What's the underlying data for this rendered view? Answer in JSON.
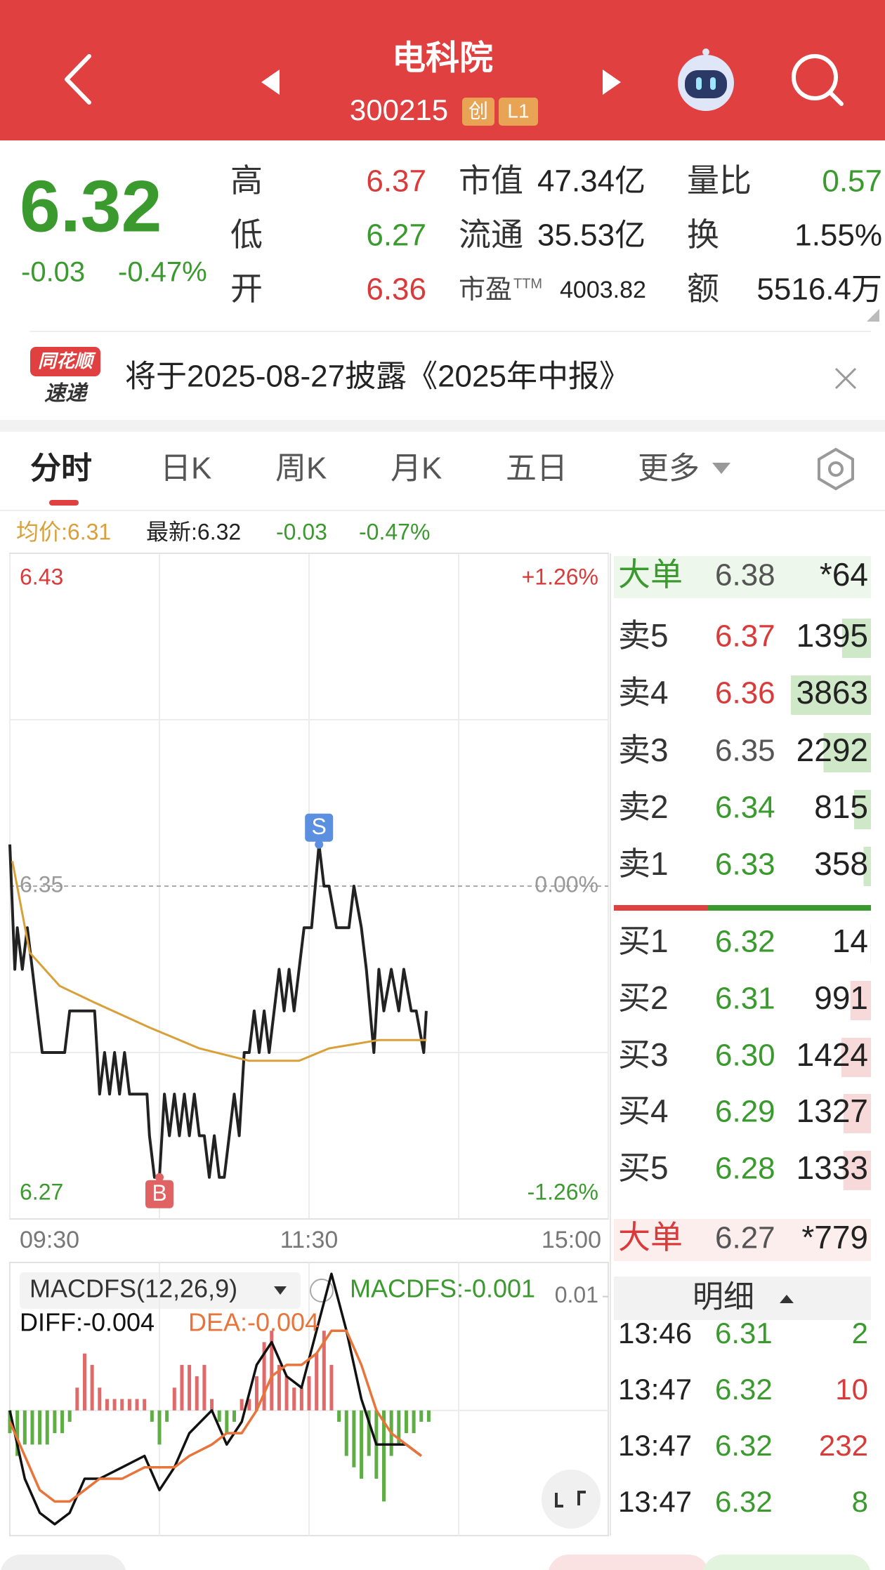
{
  "header": {
    "title": "电科院",
    "code": "300215",
    "badges": [
      "创",
      "L1"
    ]
  },
  "quote": {
    "price": "6.32",
    "change": "-0.03",
    "change_pct": "-0.47%",
    "color": "#3a9a2e",
    "stats": [
      [
        {
          "label": "高",
          "value": "6.37",
          "color": "#d93a3a"
        },
        {
          "label": "低",
          "value": "6.27",
          "color": "#3a9a2e"
        },
        {
          "label": "开",
          "value": "6.36",
          "color": "#d93a3a"
        }
      ],
      [
        {
          "label": "市值",
          "value": "47.34亿",
          "color": "#222222"
        },
        {
          "label": "流通",
          "value": "35.53亿",
          "color": "#222222"
        },
        {
          "label": "市盈",
          "sup": "TTM",
          "value": "4003.82",
          "color": "#222222"
        }
      ],
      [
        {
          "label": "量比",
          "value": "0.57",
          "color": "#3a9a2e"
        },
        {
          "label": "换",
          "value": "1.55%",
          "color": "#222222"
        },
        {
          "label": "额",
          "value": "5516.4万",
          "color": "#222222"
        }
      ]
    ]
  },
  "notice": {
    "brand": [
      "同花顺",
      "速递"
    ],
    "text": "将于2025-08-27披露《2025年中报》"
  },
  "tabs": [
    "分时",
    "日K",
    "周K",
    "月K",
    "五日",
    "更多"
  ],
  "info": {
    "avg": "均价:6.31",
    "latest": "最新:6.32",
    "change": "-0.03",
    "change_pct": "-0.47%"
  },
  "chart_data": [
    {
      "type": "line",
      "xlim": [
        0,
        240
      ],
      "xticks": [
        {
          "value": 0,
          "label": "09:30"
        },
        {
          "value": 120,
          "label": "11:30"
        },
        {
          "value": 240,
          "label": "15:00"
        }
      ],
      "ylim": [
        6.27,
        6.43
      ],
      "yticks": [
        6.43,
        6.35,
        6.27
      ],
      "ytick_colors": [
        "#d93a3a",
        "#999999",
        "#3a9a2e"
      ],
      "y2lim": [
        -1.26,
        1.26
      ],
      "y2ticks": [
        {
          "value": 1.26,
          "label": "+1.26%"
        },
        {
          "value": 0,
          "label": "0.00%"
        },
        {
          "value": -1.26,
          "label": "-1.26%"
        }
      ],
      "series": [
        {
          "color": "#222222",
          "x": [
            0,
            2,
            3,
            5,
            7,
            9,
            11,
            13,
            22,
            24,
            34,
            35,
            36,
            38,
            40,
            42,
            44,
            46,
            48,
            50,
            55,
            56,
            58,
            60,
            62,
            64,
            66,
            68,
            70,
            72,
            74,
            76,
            78,
            80,
            82,
            84,
            86,
            88,
            90,
            92,
            94,
            96,
            98,
            100,
            102,
            104,
            106,
            108,
            110,
            112,
            114,
            116,
            118,
            121,
            124,
            126,
            128,
            131,
            136,
            138,
            141,
            143,
            146,
            148,
            150,
            153,
            156,
            158,
            161,
            163,
            166,
            167
          ],
          "values": [
            6.36,
            6.33,
            6.34,
            6.33,
            6.34,
            6.33,
            6.32,
            6.31,
            6.31,
            6.32,
            6.32,
            6.31,
            6.3,
            6.31,
            6.3,
            6.31,
            6.3,
            6.31,
            6.3,
            6.3,
            6.3,
            6.29,
            6.28,
            6.28,
            6.3,
            6.29,
            6.3,
            6.29,
            6.3,
            6.29,
            6.3,
            6.29,
            6.29,
            6.28,
            6.29,
            6.28,
            6.28,
            6.29,
            6.3,
            6.29,
            6.31,
            6.31,
            6.32,
            6.31,
            6.32,
            6.31,
            6.32,
            6.33,
            6.32,
            6.33,
            6.32,
            6.33,
            6.34,
            6.34,
            6.36,
            6.35,
            6.35,
            6.34,
            6.34,
            6.35,
            6.34,
            6.33,
            6.31,
            6.33,
            6.32,
            6.33,
            6.32,
            6.33,
            6.32,
            6.32,
            6.31,
            6.32
          ]
        },
        {
          "color": "#d9a03a",
          "x": [
            1,
            8,
            20,
            34,
            56,
            76,
            96,
            116,
            128,
            148,
            167
          ],
          "values": [
            6.356,
            6.334,
            6.326,
            6.322,
            6.316,
            6.311,
            6.308,
            6.308,
            6.311,
            6.313,
            6.313
          ]
        }
      ],
      "markers": [
        {
          "label": "B",
          "x": 60,
          "y": 6.28,
          "color": "#e06262"
        },
        {
          "label": "S",
          "x": 124,
          "y": 6.36,
          "color": "#5b8fe0"
        }
      ]
    },
    {
      "type": "macd",
      "title": "MACDFS(12,26,9)",
      "value_label": "MACDFS:-0.001",
      "diff_label": "DIFF:-0.004",
      "dea_label": "DEA:-0.004",
      "xlim": [
        0,
        240
      ],
      "ylim": [
        -0.011,
        0.013
      ],
      "yticks": [
        0.01
      ],
      "bars": {
        "up_color": "#e06a6a",
        "down_color": "#5fae45",
        "x": [
          0,
          3,
          6,
          9,
          12,
          15,
          18,
          21,
          24,
          27,
          30,
          33,
          36,
          39,
          42,
          45,
          48,
          51,
          54,
          57,
          60,
          63,
          66,
          69,
          72,
          75,
          78,
          81,
          84,
          87,
          90,
          93,
          96,
          99,
          102,
          105,
          108,
          111,
          114,
          117,
          120,
          123,
          126,
          129,
          132,
          135,
          138,
          141,
          144,
          147,
          150,
          153,
          156,
          159,
          162,
          165,
          168
        ],
        "values": [
          -0.002,
          -0.004,
          -0.003,
          -0.003,
          -0.003,
          -0.003,
          -0.002,
          -0.002,
          -0.001,
          0.002,
          0.005,
          0.004,
          0.002,
          0.001,
          0.001,
          0.001,
          0.001,
          0.001,
          0.001,
          -0.001,
          -0.003,
          -0.001,
          0.002,
          0.004,
          0.004,
          0.003,
          0.004,
          0.001,
          -0.001,
          -0.002,
          -0.001,
          0.001,
          0.001,
          0.003,
          0.006,
          0.007,
          0.004,
          0.003,
          0.002,
          0.002,
          0.003,
          0.005,
          0.007,
          0.004,
          -0.001,
          -0.004,
          -0.005,
          -0.006,
          -0.004,
          -0.006,
          -0.008,
          -0.004,
          -0.003,
          -0.002,
          -0.002,
          -0.001,
          -0.001
        ]
      },
      "series": [
        {
          "color": "#111111",
          "x": [
            0,
            6,
            12,
            18,
            24,
            30,
            36,
            45,
            54,
            60,
            66,
            72,
            81,
            87,
            93,
            99,
            105,
            111,
            117,
            123,
            129,
            135,
            141,
            147,
            153,
            159,
            165
          ],
          "values": [
            0,
            -0.006,
            -0.009,
            -0.01,
            -0.009,
            -0.006,
            -0.006,
            -0.005,
            -0.004,
            -0.007,
            -0.005,
            -0.002,
            0,
            -0.003,
            -0.001,
            0.004,
            0.006,
            0.003,
            0.002,
            0.007,
            0.012,
            0.007,
            0.001,
            -0.003,
            -0.003,
            -0.003,
            -0.004
          ]
        },
        {
          "color": "#e8743a",
          "x": [
            0,
            6,
            12,
            18,
            24,
            30,
            36,
            45,
            54,
            60,
            66,
            72,
            81,
            87,
            93,
            99,
            105,
            111,
            117,
            123,
            129,
            135,
            141,
            147,
            153,
            159,
            165
          ],
          "values": [
            -0.001,
            -0.004,
            -0.007,
            -0.008,
            -0.008,
            -0.007,
            -0.006,
            -0.006,
            -0.005,
            -0.005,
            -0.005,
            -0.004,
            -0.003,
            -0.002,
            -0.002,
            0,
            0.003,
            0.004,
            0.004,
            0.005,
            0.007,
            0.007,
            0.004,
            0,
            -0.002,
            -0.003,
            -0.004
          ]
        }
      ]
    }
  ],
  "order_book": {
    "big_sell": {
      "label": "大单",
      "price": "6.38",
      "volume": "*64",
      "color": "#3a9a2e",
      "price_color": "#555555"
    },
    "asks": [
      {
        "label": "卖5",
        "price": "6.37",
        "volume": 1395,
        "color": "#d93a3a"
      },
      {
        "label": "卖4",
        "price": "6.36",
        "volume": 3863,
        "color": "#d93a3a"
      },
      {
        "label": "卖3",
        "price": "6.35",
        "volume": 2292,
        "color": "#555555"
      },
      {
        "label": "卖2",
        "price": "6.34",
        "volume": 815,
        "color": "#3a9a2e"
      },
      {
        "label": "卖1",
        "price": "6.33",
        "volume": 358,
        "color": "#3a9a2e"
      }
    ],
    "bids": [
      {
        "label": "买1",
        "price": "6.32",
        "volume": 14,
        "color": "#3a9a2e"
      },
      {
        "label": "买2",
        "price": "6.31",
        "volume": 991,
        "color": "#3a9a2e"
      },
      {
        "label": "买3",
        "price": "6.30",
        "volume": 1424,
        "color": "#3a9a2e"
      },
      {
        "label": "买4",
        "price": "6.29",
        "volume": 1327,
        "color": "#3a9a2e"
      },
      {
        "label": "买5",
        "price": "6.28",
        "volume": 1333,
        "color": "#3a9a2e"
      }
    ],
    "big_buy": {
      "label": "大单",
      "price": "6.27",
      "volume": "*779",
      "color": "#d93a3a",
      "price_color": "#555555"
    }
  },
  "detail": {
    "title": "明细",
    "trades": [
      {
        "time": "13:46",
        "price": "6.31",
        "volume": 2,
        "color": "#3a9a2e"
      },
      {
        "time": "13:47",
        "price": "6.32",
        "volume": 10,
        "color": "#d93a3a"
      },
      {
        "time": "13:47",
        "price": "6.32",
        "volume": 232,
        "color": "#d93a3a"
      },
      {
        "time": "13:47",
        "price": "6.32",
        "volume": 8,
        "color": "#3a9a2e"
      }
    ]
  }
}
